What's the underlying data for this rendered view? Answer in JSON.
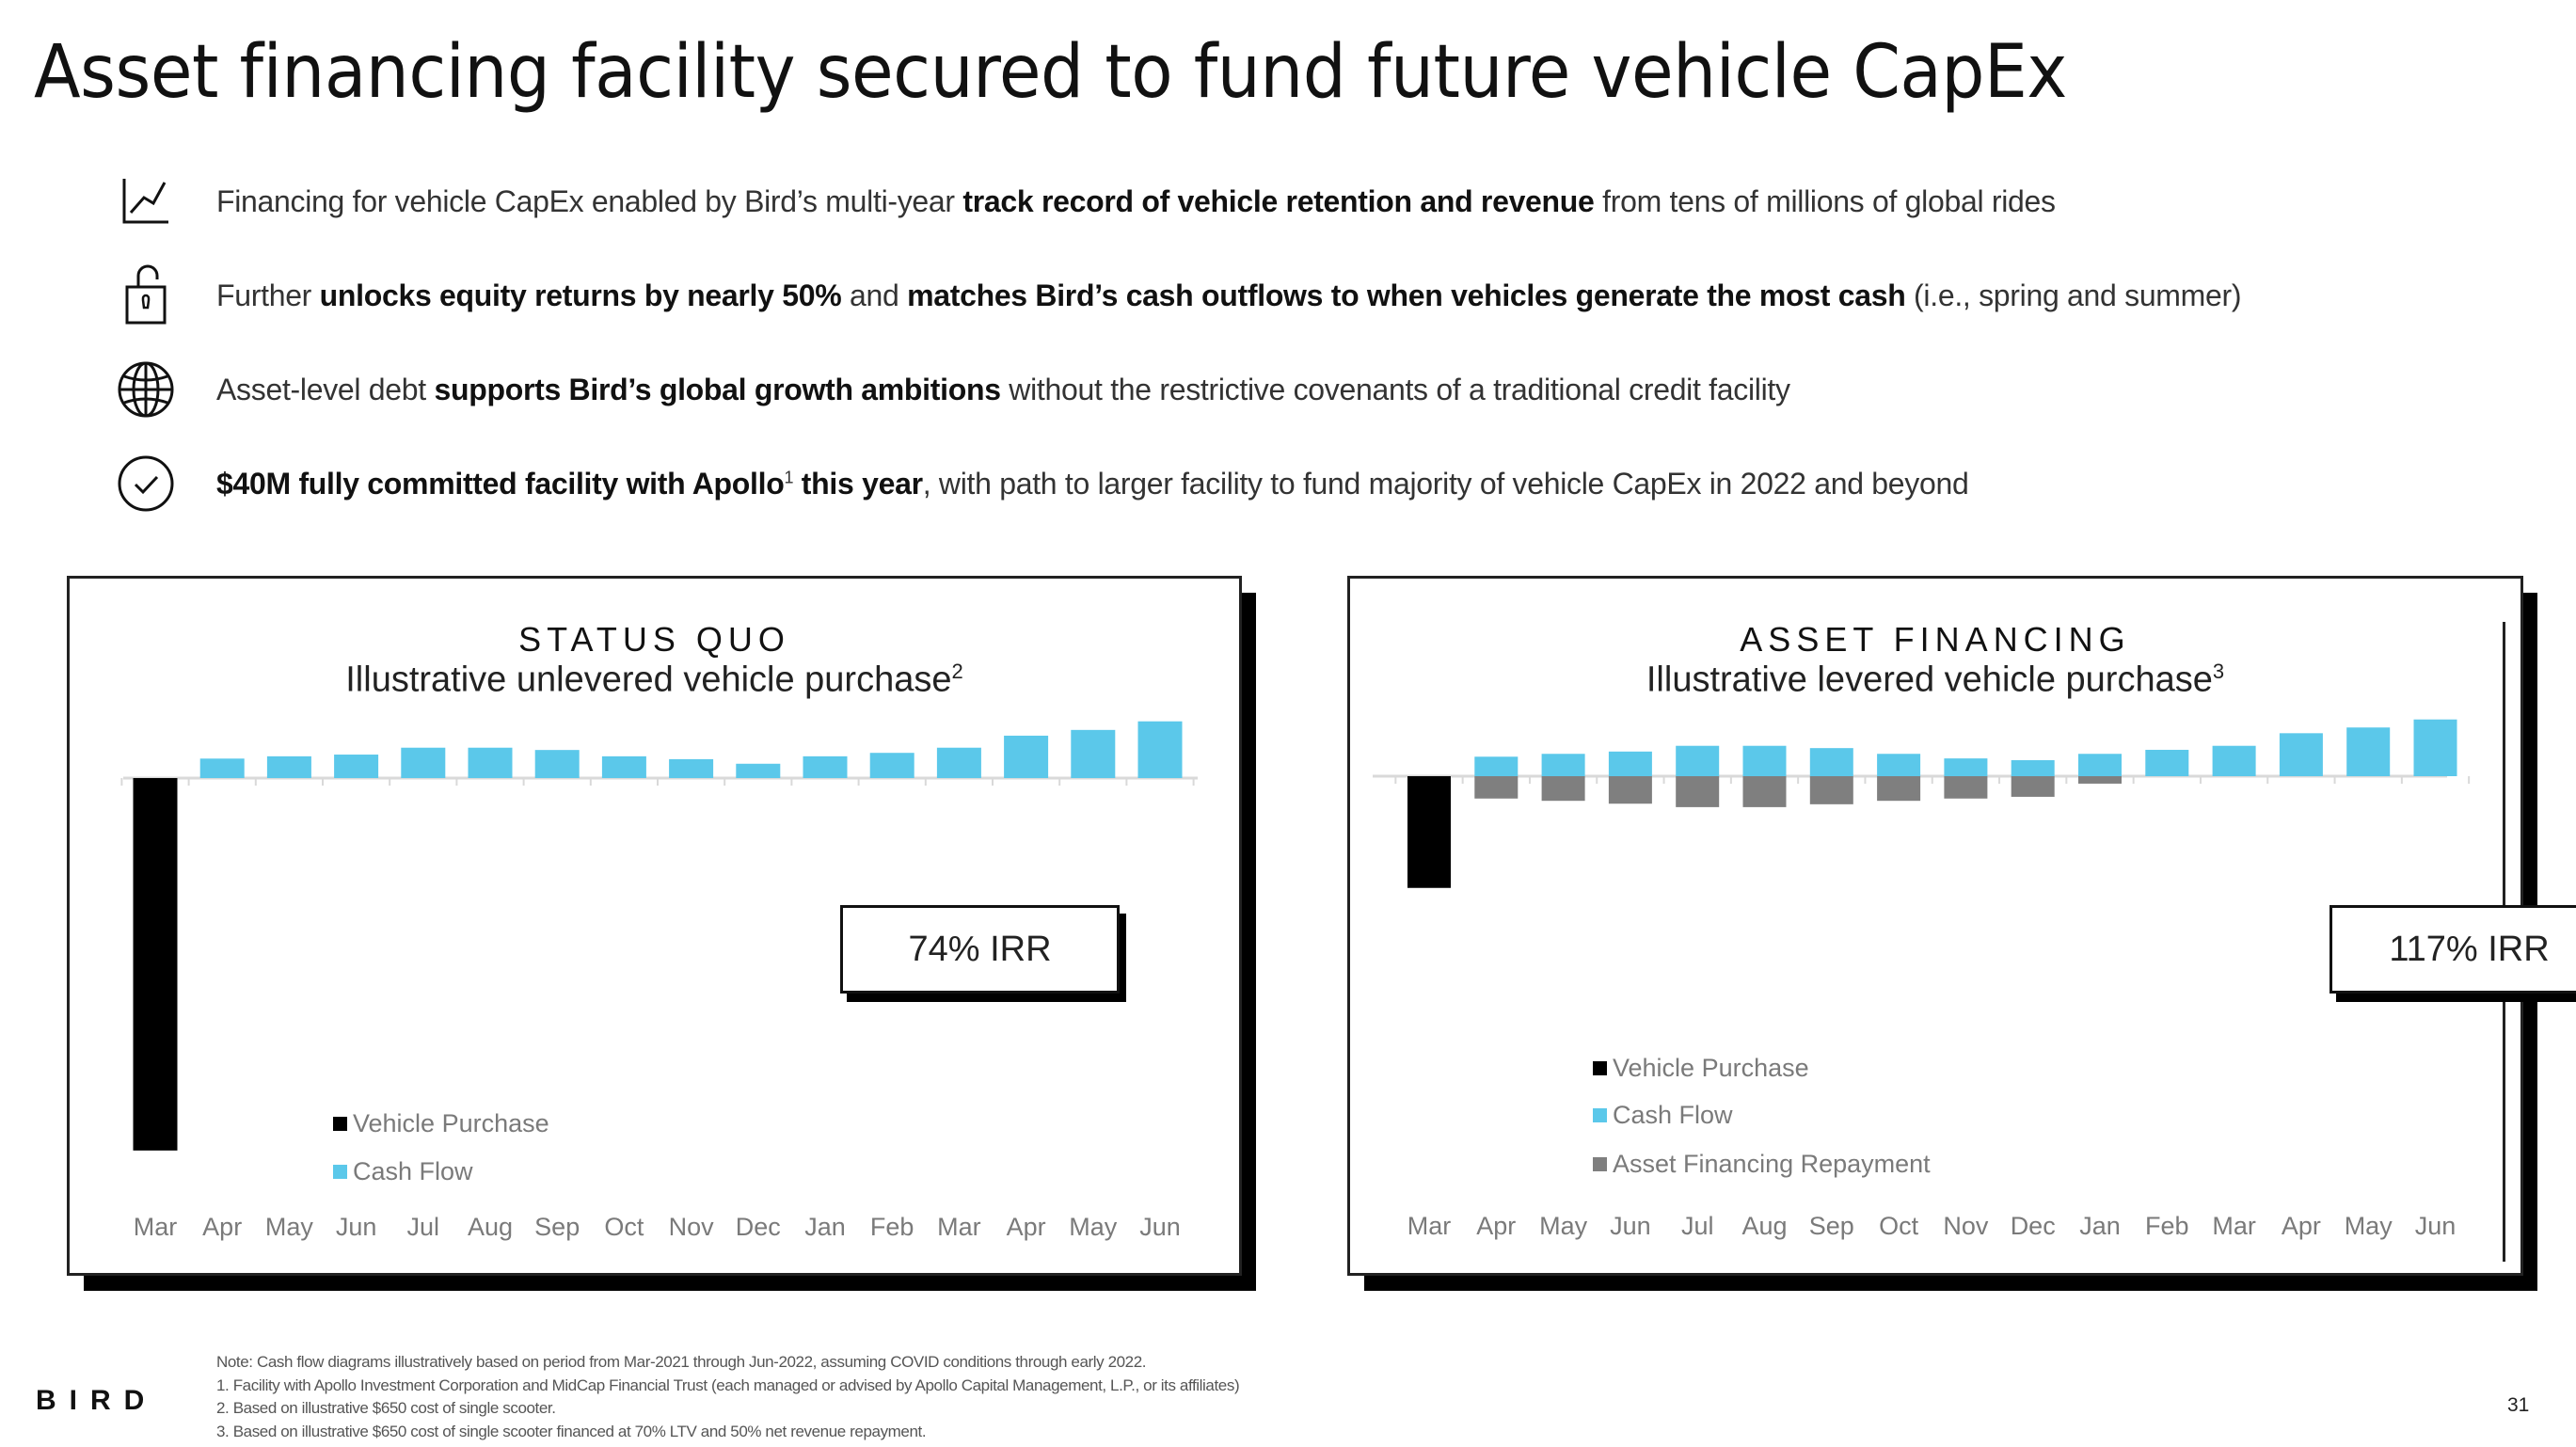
{
  "title": "Asset financing facility secured to fund future vehicle CapEx",
  "bullets": [
    {
      "icon": "line-chart-icon",
      "segments": [
        {
          "text": "Financing for vehicle CapEx enabled by Bird’s multi-year ",
          "bold": false
        },
        {
          "text": "track record of vehicle retention and revenue",
          "bold": true
        },
        {
          "text": " from tens of millions of global rides",
          "bold": false
        }
      ]
    },
    {
      "icon": "unlocked-padlock-icon",
      "segments": [
        {
          "text": "Further ",
          "bold": false
        },
        {
          "text": "unlocks equity returns by nearly 50%",
          "bold": true
        },
        {
          "text": " and ",
          "bold": false
        },
        {
          "text": "matches Bird’s cash outflows to when vehicles generate the most cash",
          "bold": true
        },
        {
          "text": " (i.e., spring and summer)",
          "bold": false
        }
      ]
    },
    {
      "icon": "globe-icon",
      "segments": [
        {
          "text": "Asset-level debt ",
          "bold": false
        },
        {
          "text": "supports Bird’s global growth ambitions",
          "bold": true
        },
        {
          "text": " without the restrictive covenants of a traditional credit facility",
          "bold": false
        }
      ]
    },
    {
      "icon": "check-circle-icon",
      "segments": [
        {
          "text": "$40M fully committed facility with Apollo",
          "bold": true
        },
        {
          "text": "1",
          "bold": true,
          "sup": true
        },
        {
          "text": " this year",
          "bold": true
        },
        {
          "text": ", with path to larger facility to fund majority of vehicle CapEx in 2022 and beyond",
          "bold": false
        }
      ]
    }
  ],
  "colors": {
    "vehicle_purchase": "#000000",
    "cash_flow": "#5BC8EA",
    "repayment": "#7F7F7F",
    "axis": "#D9D9D9"
  },
  "chart_data": [
    {
      "type": "bar",
      "title": "STATUS QUO",
      "subtitle": "Illustrative unlevered vehicle purchase",
      "subtitle_footnote": "2",
      "irr_label": "74% IRR",
      "categories": [
        "Mar",
        "Apr",
        "May",
        "Jun",
        "Jul",
        "Aug",
        "Sep",
        "Oct",
        "Nov",
        "Dec",
        "Jan",
        "Feb",
        "Mar",
        "Apr",
        "May",
        "Jun"
      ],
      "xlabel": "",
      "ylabel": "",
      "grid": false,
      "legend_position": "bottom-left",
      "ylim": [
        -650,
        100
      ],
      "series": [
        {
          "name": "Vehicle Purchase",
          "color_key": "vehicle_purchase",
          "values": [
            -650,
            0,
            0,
            0,
            0,
            0,
            0,
            0,
            0,
            0,
            0,
            0,
            0,
            0,
            0,
            0
          ]
        },
        {
          "name": "Cash Flow",
          "color_key": "cash_flow",
          "values": [
            0,
            34,
            38,
            41,
            53,
            53,
            49,
            38,
            33,
            25,
            38,
            44,
            53,
            74,
            84,
            99
          ]
        }
      ]
    },
    {
      "type": "bar",
      "title": "ASSET FINANCING",
      "subtitle": "Illustrative levered vehicle purchase",
      "subtitle_footnote": "3",
      "irr_label": "117% IRR",
      "categories": [
        "Mar",
        "Apr",
        "May",
        "Jun",
        "Jul",
        "Aug",
        "Sep",
        "Oct",
        "Nov",
        "Dec",
        "Jan",
        "Feb",
        "Mar",
        "Apr",
        "May",
        "Jun"
      ],
      "xlabel": "",
      "ylabel": "",
      "grid": false,
      "legend_position": "bottom-left",
      "ylim": [
        -650,
        100
      ],
      "series": [
        {
          "name": "Vehicle Purchase",
          "color_key": "vehicle_purchase",
          "values": [
            -195,
            0,
            0,
            0,
            0,
            0,
            0,
            0,
            0,
            0,
            0,
            0,
            0,
            0,
            0,
            0
          ]
        },
        {
          "name": "Cash Flow",
          "color_key": "cash_flow",
          "values": [
            0,
            34,
            39,
            43,
            53,
            53,
            49,
            39,
            31,
            28,
            39,
            46,
            53,
            75,
            85,
            99
          ]
        },
        {
          "name": "Asset Financing Repayment",
          "color_key": "repayment",
          "values": [
            0,
            -39,
            -43,
            -48,
            -54,
            -54,
            -49,
            -43,
            -39,
            -36,
            -13,
            0,
            0,
            0,
            0,
            0
          ]
        }
      ]
    }
  ],
  "footnotes": [
    "Note: Cash flow diagrams illustratively based on period from Mar-2021 through Jun-2022, assuming COVID conditions through early 2022.",
    "1. Facility with Apollo Investment Corporation and MidCap Financial Trust (each managed or advised by Apollo Capital Management, L.P., or its affiliates)",
    "2. Based on illustrative $650 cost of single scooter.",
    "3. Based on illustrative $650 cost of single scooter financed at 70% LTV and 50% net revenue repayment."
  ],
  "logo": "BIRD",
  "page_number": "31"
}
